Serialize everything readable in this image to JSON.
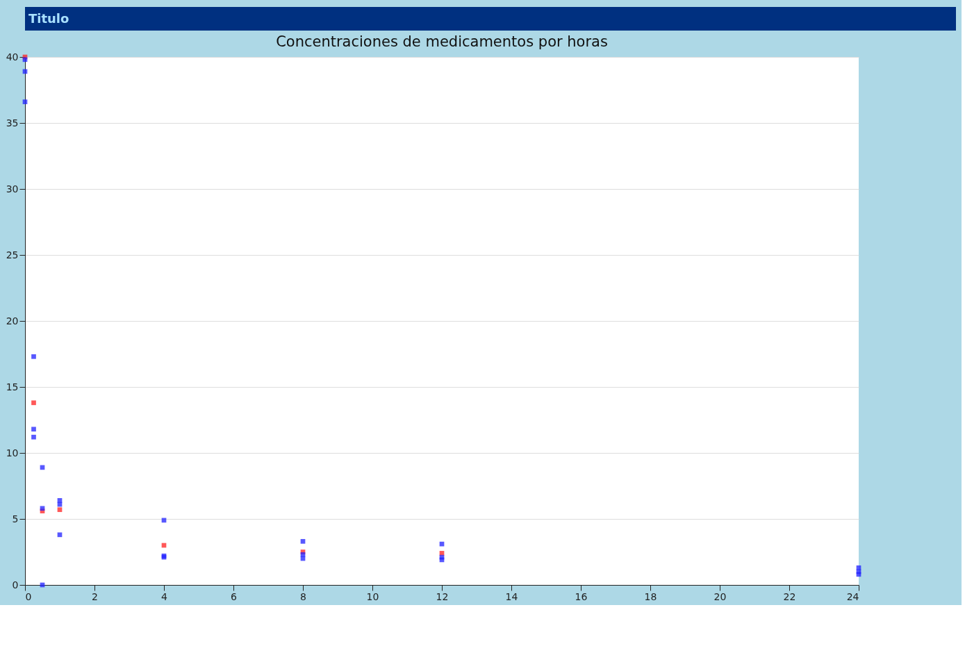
{
  "chart_data": {
    "type": "scatter",
    "title": "Concentraciones de medicamentos por horas",
    "annotations": [
      "Titulo"
    ],
    "marker": "square",
    "grid": "y",
    "xlim": [
      0,
      24
    ],
    "xticks": [
      0,
      2,
      4,
      6,
      8,
      10,
      12,
      14,
      16,
      18,
      20,
      22,
      24
    ],
    "ylim": [
      0,
      40
    ],
    "yticks": [
      0,
      5,
      10,
      15,
      20,
      25,
      30,
      35,
      40
    ],
    "series": [
      {
        "color": "#ff2020",
        "x": [
          0,
          0.25,
          0.5,
          1,
          4,
          8,
          12
        ],
        "values": [
          40,
          13.8,
          5.6,
          5.7,
          3.0,
          2.5,
          2.4
        ]
      },
      {
        "color": "#2020ff",
        "x": [
          0,
          0,
          0,
          0.25,
          0.25,
          0.25,
          0.5,
          0.5,
          0.5,
          1,
          1,
          1,
          4,
          4,
          4,
          8,
          8,
          8,
          12,
          12,
          12,
          24,
          24,
          24
        ],
        "values": [
          39.8,
          38.9,
          36.6,
          17.3,
          11.8,
          11.2,
          8.9,
          5.8,
          0,
          6.4,
          6.1,
          3.8,
          4.9,
          2.2,
          2.1,
          3.3,
          2.3,
          2.0,
          3.1,
          2.1,
          1.9,
          1.3,
          1.0,
          0.8
        ]
      }
    ]
  }
}
